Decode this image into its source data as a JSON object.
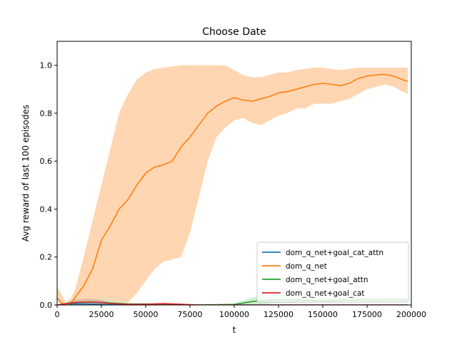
{
  "chart_data": {
    "type": "line",
    "title": "Choose Date",
    "xlabel": "t",
    "ylabel": "Avg reward of last 100 episodes",
    "xlim": [
      0,
      200000
    ],
    "ylim": [
      0,
      1.1
    ],
    "xticks": [
      0,
      25000,
      50000,
      75000,
      100000,
      125000,
      150000,
      175000,
      200000
    ],
    "yticks": [
      0.0,
      0.2,
      0.4,
      0.6,
      0.8,
      1.0
    ],
    "xtick_labels": [
      "0",
      "25000",
      "50000",
      "75000",
      "100000",
      "125000",
      "150000",
      "175000",
      "200000"
    ],
    "ytick_labels": [
      "0.0",
      "0.2",
      "0.4",
      "0.6",
      "0.8",
      "1.0"
    ],
    "legend_position": "lower-right",
    "grid": false,
    "series": [
      {
        "name": "dom_q_net+goal_cat_attn",
        "color": "#1f77b4",
        "x": [
          0,
          10000,
          25000,
          30000,
          40000,
          60000,
          100000,
          150000,
          198000
        ],
        "y": [
          0.0,
          0.005,
          0.003,
          0.001,
          0.0,
          0.0,
          0.0,
          0.0,
          0.0
        ],
        "band_low": [
          0.0,
          0.0,
          0.0,
          0.0,
          0.0,
          0.0,
          0.0,
          0.0,
          0.0
        ],
        "band_high": [
          0.0,
          0.01,
          0.01,
          0.005,
          0.0,
          0.0,
          0.0,
          0.0,
          0.0
        ]
      },
      {
        "name": "dom_q_net",
        "color": "#ff7f0e",
        "band_color": "#ffd1a8",
        "x": [
          0,
          2000,
          5000,
          8000,
          10000,
          15000,
          20000,
          25000,
          30000,
          35000,
          40000,
          45000,
          50000,
          55000,
          60000,
          65000,
          70000,
          75000,
          80000,
          85000,
          90000,
          95000,
          100000,
          105000,
          110000,
          115000,
          120000,
          125000,
          130000,
          135000,
          140000,
          145000,
          150000,
          155000,
          160000,
          165000,
          170000,
          175000,
          180000,
          185000,
          190000,
          195000,
          198000
        ],
        "y": [
          0.03,
          0.01,
          0.0,
          0.01,
          0.03,
          0.08,
          0.15,
          0.27,
          0.33,
          0.4,
          0.44,
          0.5,
          0.55,
          0.575,
          0.585,
          0.6,
          0.66,
          0.7,
          0.75,
          0.8,
          0.83,
          0.85,
          0.865,
          0.855,
          0.85,
          0.86,
          0.87,
          0.885,
          0.89,
          0.9,
          0.91,
          0.92,
          0.925,
          0.92,
          0.915,
          0.925,
          0.945,
          0.955,
          0.96,
          0.962,
          0.955,
          0.94,
          0.933
        ],
        "band_low": [
          0.02,
          0.005,
          0.0,
          0.0,
          0.0,
          0.0,
          0.0,
          0.0,
          0.0,
          0.0,
          0.01,
          0.05,
          0.1,
          0.15,
          0.18,
          0.19,
          0.2,
          0.3,
          0.45,
          0.6,
          0.7,
          0.74,
          0.77,
          0.78,
          0.76,
          0.75,
          0.77,
          0.79,
          0.8,
          0.82,
          0.82,
          0.84,
          0.84,
          0.84,
          0.85,
          0.86,
          0.88,
          0.9,
          0.91,
          0.92,
          0.91,
          0.89,
          0.88
        ],
        "band_high": [
          0.08,
          0.05,
          0.01,
          0.03,
          0.06,
          0.2,
          0.35,
          0.5,
          0.65,
          0.8,
          0.88,
          0.94,
          0.97,
          0.985,
          0.99,
          0.995,
          1.0,
          1.0,
          1.0,
          1.0,
          1.0,
          1.0,
          0.98,
          0.96,
          0.95,
          0.95,
          0.96,
          0.97,
          0.97,
          0.98,
          0.985,
          0.99,
          0.99,
          0.985,
          0.98,
          0.985,
          0.99,
          0.99,
          0.99,
          0.99,
          0.99,
          0.99,
          0.99
        ]
      },
      {
        "name": "dom_q_net+goal_attn",
        "color": "#2ca02c",
        "band_color": "#cdeacd",
        "x": [
          0,
          5000,
          10000,
          20000,
          30000,
          40000,
          60000,
          80000,
          100000,
          105000,
          110000,
          115000,
          120000,
          130000,
          140000,
          150000,
          160000,
          170000,
          180000,
          190000,
          198000
        ],
        "y": [
          0.0,
          0.005,
          0.01,
          0.012,
          0.008,
          0.004,
          0.002,
          0.0,
          0.002,
          0.008,
          0.014,
          0.018,
          0.02,
          0.022,
          0.02,
          0.018,
          0.02,
          0.022,
          0.02,
          0.022,
          0.02
        ],
        "band_low": [
          0.0,
          0.0,
          0.0,
          0.0,
          0.0,
          0.0,
          0.0,
          0.0,
          0.0,
          0.0,
          0.0,
          0.0,
          0.005,
          0.008,
          0.01,
          0.01,
          0.01,
          0.012,
          0.012,
          0.014,
          0.012
        ],
        "band_high": [
          0.0,
          0.01,
          0.02,
          0.025,
          0.02,
          0.01,
          0.005,
          0.002,
          0.006,
          0.018,
          0.03,
          0.038,
          0.042,
          0.04,
          0.035,
          0.03,
          0.032,
          0.034,
          0.032,
          0.034,
          0.03
        ]
      },
      {
        "name": "dom_q_net+goal_cat",
        "color": "#d62728",
        "x": [
          0,
          5000,
          10000,
          15000,
          20000,
          25000,
          30000,
          40000,
          50000,
          60000,
          70000,
          80000,
          100000,
          150000,
          198000
        ],
        "y": [
          0.0,
          0.005,
          0.01,
          0.012,
          0.012,
          0.01,
          0.006,
          0.003,
          0.003,
          0.005,
          0.003,
          0.0,
          0.0,
          0.0,
          0.0
        ],
        "band_low": [
          0.0,
          0.0,
          0.0,
          0.0,
          0.0,
          0.0,
          0.0,
          0.0,
          0.0,
          0.0,
          0.0,
          0.0,
          0.0,
          0.0,
          0.0
        ],
        "band_high": [
          0.0,
          0.01,
          0.02,
          0.025,
          0.025,
          0.02,
          0.012,
          0.006,
          0.006,
          0.01,
          0.006,
          0.0,
          0.0,
          0.0,
          0.0
        ]
      }
    ]
  }
}
